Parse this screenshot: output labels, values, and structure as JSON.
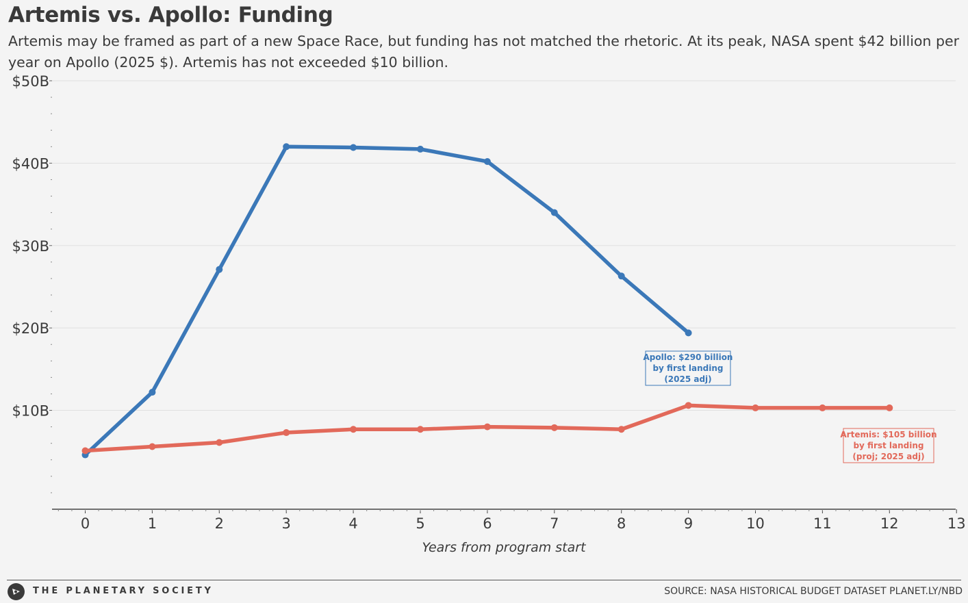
{
  "header": {
    "title": "Artemis vs. Apollo: Funding",
    "subtitle": "Artemis may be framed as part of a new Space Race, but funding has not matched the rhetoric. At its peak, NASA spent $42 billion per year on Apollo (2025 $). Artemis has not exceeded $10 billion."
  },
  "footer": {
    "org": "THE PLANETARY SOCIETY",
    "source": "SOURCE: NASA HISTORICAL BUDGET DATASET PLANET.LY/NBD"
  },
  "chart_data": {
    "type": "line",
    "title": "Artemis vs. Apollo: Funding",
    "xlabel": "Years from program start",
    "ylabel": "",
    "xlim": [
      -0.5,
      13
    ],
    "ylim": [
      -2,
      50
    ],
    "x_ticks": [
      0,
      1,
      2,
      3,
      4,
      5,
      6,
      7,
      8,
      9,
      10,
      11,
      12,
      13
    ],
    "y_ticks": [
      10,
      20,
      30,
      40,
      50
    ],
    "y_tick_labels": [
      "$10B",
      "$20B",
      "$30B",
      "$40B",
      "$50B"
    ],
    "grid": true,
    "colors": {
      "apollo": "#3b78b8",
      "artemis": "#e2695a"
    },
    "series": [
      {
        "key": "apollo",
        "x": [
          0,
          1,
          2,
          3,
          4,
          5,
          6,
          7,
          8,
          9
        ],
        "values": [
          4.6,
          12.2,
          27.1,
          42.0,
          41.9,
          41.7,
          40.2,
          34.0,
          26.3,
          19.4
        ],
        "annotation": [
          "Apollo: $290 billion",
          "by first landing",
          "(2025 adj)"
        ]
      },
      {
        "key": "artemis",
        "x": [
          0,
          1,
          2,
          3,
          4,
          5,
          6,
          7,
          8,
          9,
          10,
          11,
          12
        ],
        "values": [
          5.1,
          5.6,
          6.1,
          7.3,
          7.7,
          7.7,
          8.0,
          7.9,
          7.7,
          10.6,
          10.3,
          10.3,
          10.3
        ],
        "annotation": [
          "Artemis: $105 billion",
          "by first landing",
          "(proj; 2025 adj)"
        ]
      }
    ]
  }
}
